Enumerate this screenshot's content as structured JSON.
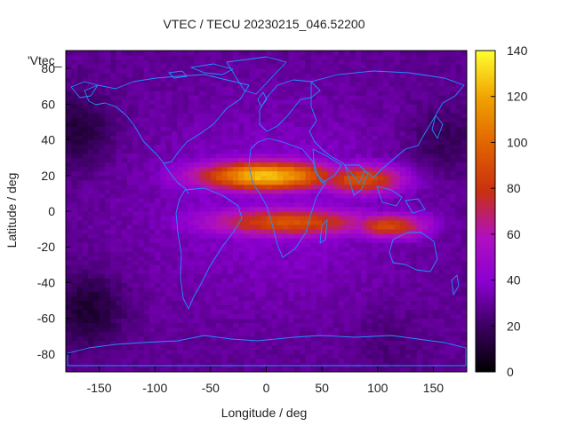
{
  "chart_data": {
    "type": "heatmap",
    "title": "VTEC / TECU 20230215_046.52200",
    "xlabel": "Longitude / deg",
    "ylabel": "Latitude / deg",
    "series_label": "'Vtec_",
    "xlim": [
      -180,
      180
    ],
    "ylim": [
      -90,
      90
    ],
    "x_ticks": [
      -150,
      -100,
      -50,
      0,
      50,
      100,
      150
    ],
    "y_ticks": [
      -80,
      -60,
      -40,
      -20,
      0,
      20,
      40,
      60,
      80
    ],
    "colorbar": {
      "min": 0,
      "max": 140,
      "ticks": [
        0,
        20,
        40,
        60,
        80,
        100,
        120,
        140
      ]
    },
    "grid": {
      "lon_step": 5,
      "lat_step": 2.5
    },
    "features": [
      {
        "name": "northern crest",
        "lon": 0,
        "lat": 20,
        "value": 128,
        "lon_sigma": 45,
        "lat_sigma": 6
      },
      {
        "name": "northern crest east",
        "lon": 85,
        "lat": 18,
        "value": 92,
        "lon_sigma": 30,
        "lat_sigma": 6
      },
      {
        "name": "southern crest",
        "lon": 20,
        "lat": -6,
        "value": 92,
        "lon_sigma": 55,
        "lat_sigma": 6
      },
      {
        "name": "southern crest east",
        "lon": 110,
        "lat": -8,
        "value": 88,
        "lon_sigma": 25,
        "lat_sigma": 5
      },
      {
        "name": "dayside background",
        "lon": 10,
        "lat": 5,
        "value": 40,
        "lon_sigma": 90,
        "lat_sigma": 40
      }
    ],
    "background_value": 28,
    "minima": [
      {
        "lon": -170,
        "lat": 45,
        "value": 12
      },
      {
        "lon": -160,
        "lat": -55,
        "value": 10
      },
      {
        "lon": 160,
        "lat": 40,
        "value": 18
      },
      {
        "lon": 110,
        "lat": -75,
        "value": 24
      }
    ]
  },
  "colors": {
    "coastline": "#1e90ff",
    "frame": "#000000"
  }
}
